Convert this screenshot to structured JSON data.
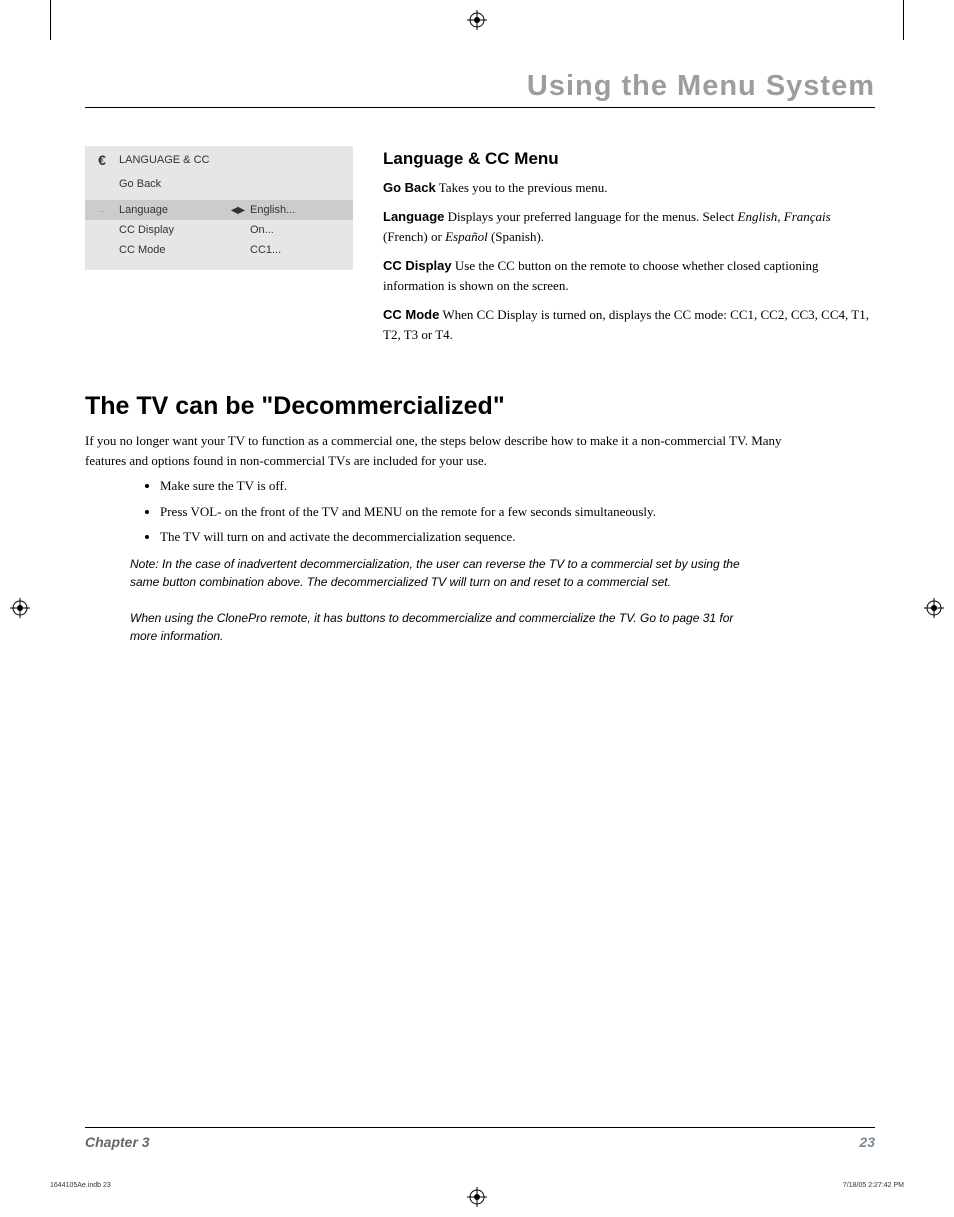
{
  "header": {
    "title": "Using the Menu System"
  },
  "menuBox": {
    "icon": "€",
    "title": "LANGUAGE & CC",
    "goBack": "Go Back",
    "selectedArrow": "→",
    "rows": [
      {
        "label": "Language",
        "arrows": "◀ ▶",
        "value": "English...",
        "selected": true
      },
      {
        "label": "CC Display",
        "arrows": "",
        "value": "On...",
        "selected": false
      },
      {
        "label": "CC Mode",
        "arrows": "",
        "value": "CC1...",
        "selected": false
      }
    ]
  },
  "langSection": {
    "heading": "Language & CC Menu",
    "p1": {
      "b": "Go Back",
      "rest": "   Takes you to the previous menu."
    },
    "p2": {
      "b": "Language",
      "rest1": "   Displays your preferred language for the menus. Select ",
      "i": "English, Français",
      "rest2": " (French) or ",
      "i2": "Español",
      "rest3": " (Spanish)."
    },
    "p3": {
      "b": "CC Display",
      "rest": "  Use the CC button on the remote to choose whether closed captioning information is shown on the screen."
    },
    "p4": {
      "b": "CC Mode",
      "rest": "   When CC Display is turned on, displays the CC mode: CC1, CC2, CC3, CC4, T1, T2, T3 or T4."
    }
  },
  "decom": {
    "heading": "The TV can be \"Decommercialized\"",
    "intro": "If you no longer want your TV to function as a commercial one, the steps below describe how to make it a non-commercial TV. Many features and options found in non-commercial TVs are included for your use.",
    "bullets": [
      "Make sure the TV is off.",
      "Press VOL- on the front of the TV and MENU on the remote for a few seconds simultaneously.",
      "The TV will turn on and activate the decommercialization sequence."
    ],
    "note1": "Note: In the case of inadvertent decommercialization, the user can reverse the TV to a commercial set by using the same button combination above. The decommercialized TV will turn on and reset to a commercial set.",
    "note2": "When using the ClonePro remote, it has buttons to decommercialize and commercialize the TV. Go to page 31 for more information."
  },
  "footer": {
    "chapter": "Chapter 3",
    "page": "23"
  },
  "printFooter": {
    "left": "1644105Ae.indb   23",
    "right": "7/18/05   2:27:42 PM"
  }
}
